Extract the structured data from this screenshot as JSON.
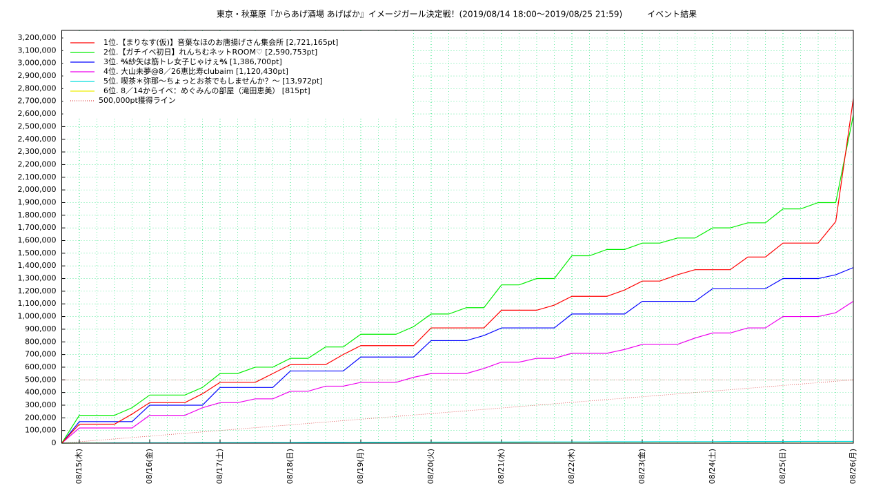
{
  "chart_data": {
    "type": "line",
    "title": "東京・秋葉原『からあげ酒場 あげぱか』イメージガール決定戦！(2019/08/14 18:00～2019/08/25 21:59)　　　イベント結果",
    "x": [
      18,
      24,
      30,
      36,
      42,
      48,
      54,
      60,
      66,
      72,
      78,
      84,
      90,
      96,
      102,
      108,
      114,
      120,
      126,
      132,
      138,
      144,
      150,
      156,
      162,
      168,
      174,
      180,
      186,
      192,
      198,
      204,
      210,
      216,
      222,
      228,
      234,
      240,
      246,
      252,
      258,
      264,
      270,
      276,
      282,
      288
    ],
    "xlim": [
      18,
      288
    ],
    "xticks": [
      {
        "value": 24,
        "label": "08/15(木)"
      },
      {
        "value": 48,
        "label": "08/16(金)"
      },
      {
        "value": 72,
        "label": "08/17(土)"
      },
      {
        "value": 96,
        "label": "08/18(日)"
      },
      {
        "value": 120,
        "label": "08/19(月)"
      },
      {
        "value": 144,
        "label": "08/20(火)"
      },
      {
        "value": 168,
        "label": "08/21(水)"
      },
      {
        "value": 192,
        "label": "08/22(木)"
      },
      {
        "value": 216,
        "label": "08/23(金)"
      },
      {
        "value": 240,
        "label": "08/24(土)"
      },
      {
        "value": 264,
        "label": "08/25(日)"
      },
      {
        "value": 288,
        "label": "08/26(月)"
      }
    ],
    "ylim": [
      0,
      3260000
    ],
    "yticks": [
      0,
      {
        "value": 100000,
        "label": "100,000"
      },
      {
        "value": 200000,
        "label": "200,000"
      },
      {
        "value": 300000,
        "label": "300,000"
      },
      {
        "value": 400000,
        "label": "400,000"
      },
      {
        "value": 500000,
        "label": "500,000"
      },
      {
        "value": 600000,
        "label": "600,000"
      },
      {
        "value": 700000,
        "label": "700,000"
      },
      {
        "value": 800000,
        "label": "800,000"
      },
      {
        "value": 900000,
        "label": "900,000"
      },
      {
        "value": 1000000,
        "label": "1,000,000"
      },
      {
        "value": 1100000,
        "label": "1,100,000"
      },
      {
        "value": 1200000,
        "label": "1,200,000"
      },
      {
        "value": 1300000,
        "label": "1,300,000"
      },
      {
        "value": 1400000,
        "label": "1,400,000"
      },
      {
        "value": 1500000,
        "label": "1,500,000"
      },
      {
        "value": 1600000,
        "label": "1,600,000"
      },
      {
        "value": 1700000,
        "label": "1,700,000"
      },
      {
        "value": 1800000,
        "label": "1,800,000"
      },
      {
        "value": 1900000,
        "label": "1,900,000"
      },
      {
        "value": 2000000,
        "label": "2,000,000"
      },
      {
        "value": 2100000,
        "label": "2,100,000"
      },
      {
        "value": 2200000,
        "label": "2,200,000"
      },
      {
        "value": 2300000,
        "label": "2,300,000"
      },
      {
        "value": 2400000,
        "label": "2,400,000"
      },
      {
        "value": 2500000,
        "label": "2,500,000"
      },
      {
        "value": 2600000,
        "label": "2,600,000"
      },
      {
        "value": 2700000,
        "label": "2,700,000"
      },
      {
        "value": 2800000,
        "label": "2,800,000"
      },
      {
        "value": 2900000,
        "label": "2,900,000"
      },
      {
        "value": 3000000,
        "label": "3,000,000"
      },
      {
        "value": 3100000,
        "label": "3,100,000"
      },
      {
        "value": 3200000,
        "label": "3,200,000"
      }
    ],
    "grid": true,
    "grid_color": "#00dd66",
    "legend": "top-left",
    "series": [
      {
        "name": "1位.【まりなす(仮)】音葉なほのお唐揚げさん集会所 [2,721,165pt]",
        "color": "#ff0000",
        "values": [
          0,
          150000,
          150000,
          150000,
          230000,
          320000,
          320000,
          320000,
          390000,
          480000,
          480000,
          480000,
          550000,
          620000,
          620000,
          620000,
          700000,
          770000,
          770000,
          770000,
          770000,
          910000,
          910000,
          910000,
          910000,
          1050000,
          1050000,
          1050000,
          1090000,
          1160000,
          1160000,
          1160000,
          1210000,
          1280000,
          1280000,
          1330000,
          1370000,
          1370000,
          1370000,
          1470000,
          1470000,
          1580000,
          1580000,
          1580000,
          1750000,
          2721165
        ]
      },
      {
        "name": "2位.【ガチイベ初日】れんちむネットROOM♡ [2,590,753pt]",
        "color": "#00ee00",
        "values": [
          0,
          220000,
          220000,
          220000,
          280000,
          380000,
          380000,
          380000,
          440000,
          550000,
          550000,
          600000,
          600000,
          670000,
          670000,
          760000,
          760000,
          860000,
          860000,
          860000,
          920000,
          1020000,
          1020000,
          1070000,
          1070000,
          1250000,
          1250000,
          1300000,
          1300000,
          1480000,
          1480000,
          1530000,
          1530000,
          1580000,
          1580000,
          1620000,
          1620000,
          1700000,
          1700000,
          1740000,
          1740000,
          1850000,
          1850000,
          1900000,
          1900000,
          2590753
        ]
      },
      {
        "name": "3位. ℁紗矢は筋トレ女子じゃけぇ℁ [1,386,700pt]",
        "color": "#0000ff",
        "values": [
          0,
          170000,
          170000,
          170000,
          170000,
          300000,
          300000,
          300000,
          300000,
          440000,
          440000,
          440000,
          440000,
          570000,
          570000,
          570000,
          570000,
          680000,
          680000,
          680000,
          680000,
          810000,
          810000,
          810000,
          850000,
          910000,
          910000,
          910000,
          910000,
          1020000,
          1020000,
          1020000,
          1020000,
          1120000,
          1120000,
          1120000,
          1120000,
          1220000,
          1220000,
          1220000,
          1220000,
          1300000,
          1300000,
          1300000,
          1330000,
          1386700
        ]
      },
      {
        "name": "4位. 大山未夢@8／26恵比寿clubaim [1,120,430pt]",
        "color": "#ee00ee",
        "values": [
          0,
          120000,
          120000,
          120000,
          120000,
          220000,
          220000,
          220000,
          280000,
          320000,
          320000,
          350000,
          350000,
          410000,
          410000,
          450000,
          450000,
          480000,
          480000,
          480000,
          520000,
          550000,
          550000,
          550000,
          590000,
          640000,
          640000,
          670000,
          670000,
          710000,
          710000,
          710000,
          740000,
          780000,
          780000,
          780000,
          830000,
          870000,
          870000,
          910000,
          910000,
          1000000,
          1000000,
          1000000,
          1030000,
          1120430
        ]
      },
      {
        "name": "5位. 喫茶＊弥那〜ちょっとお茶でもしませんか？〜 [13,972pt]",
        "color": "#00dddd",
        "values": [
          0,
          1000,
          1000,
          2000,
          2000,
          3000,
          3000,
          3000,
          4000,
          4000,
          4000,
          5000,
          5000,
          5000,
          6000,
          6000,
          6000,
          7000,
          7000,
          7000,
          8000,
          8000,
          8000,
          8000,
          9000,
          9000,
          9000,
          10000,
          10000,
          10000,
          10000,
          11000,
          11000,
          11000,
          12000,
          12000,
          12000,
          12000,
          13000,
          13000,
          13000,
          13000,
          14000,
          14000,
          14000,
          13972
        ]
      },
      {
        "name": "6位. 8／14からイベ：めぐみんの部屋（滝田恵美） [815pt]",
        "color": "#eeee00",
        "values": [
          0,
          815,
          815,
          815,
          815,
          815,
          815,
          815,
          815,
          815,
          815,
          815,
          815,
          815,
          815,
          815,
          815,
          815,
          815,
          815,
          815,
          815,
          815,
          815,
          815,
          815,
          815,
          815,
          815,
          815,
          815,
          815,
          815,
          815,
          815,
          815,
          815,
          815,
          815,
          815,
          815,
          815,
          815,
          815,
          815,
          815
        ]
      }
    ],
    "target_line": {
      "name": "500,000pt獲得ライン",
      "color": "#dd4444",
      "x": [
        18,
        288
      ],
      "values": [
        0,
        500000
      ]
    }
  }
}
